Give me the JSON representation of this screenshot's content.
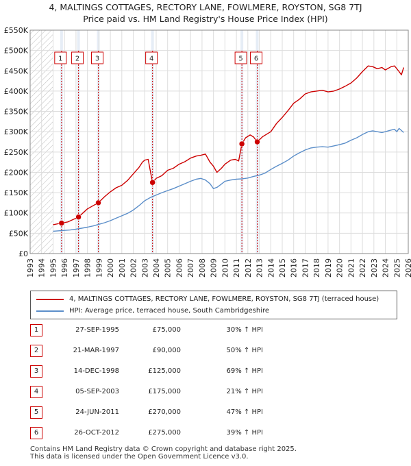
{
  "title": {
    "line1": "4, MALTINGS COTTAGES, RECTORY LANE, FOWLMERE, ROYSTON, SG8 7TJ",
    "line2": "Price paid vs. HM Land Registry's House Price Index (HPI)"
  },
  "chart_data": {
    "type": "line",
    "title": "4, MALTINGS COTTAGES, RECTORY LANE, FOWLMERE, ROYSTON, SG8 7TJ — Price paid vs. HM Land Registry's House Price Index (HPI)",
    "xlabel": "",
    "ylabel": "",
    "xlim": [
      1993,
      2026
    ],
    "ylim": [
      0,
      550000
    ],
    "x_ticks": [
      "1993",
      "1994",
      "1995",
      "1996",
      "1997",
      "1998",
      "1999",
      "2000",
      "2001",
      "2002",
      "2003",
      "2004",
      "2005",
      "2006",
      "2007",
      "2008",
      "2009",
      "2010",
      "2011",
      "2012",
      "2013",
      "2014",
      "2015",
      "2016",
      "2017",
      "2018",
      "2019",
      "2020",
      "2021",
      "2022",
      "2023",
      "2024",
      "2025",
      "2026"
    ],
    "y_ticks": [
      {
        "value": 0,
        "label": "£0"
      },
      {
        "value": 50000,
        "label": "£50K"
      },
      {
        "value": 100000,
        "label": "£100K"
      },
      {
        "value": 150000,
        "label": "£150K"
      },
      {
        "value": 200000,
        "label": "£200K"
      },
      {
        "value": 250000,
        "label": "£250K"
      },
      {
        "value": 300000,
        "label": "£300K"
      },
      {
        "value": 350000,
        "label": "£350K"
      },
      {
        "value": 400000,
        "label": "£400K"
      },
      {
        "value": 450000,
        "label": "£450K"
      },
      {
        "value": 500000,
        "label": "£500K"
      },
      {
        "value": 550000,
        "label": "£550K"
      }
    ],
    "grid": true,
    "data_start_year": 1995.0,
    "series": [
      {
        "name": "4, MALTINGS COTTAGES, RECTORY LANE, FOWLMERE, ROYSTON, SG8 7TJ (terraced house)",
        "color": "#cc0000",
        "x": [
          1995.0,
          1995.74,
          1996.3,
          1997.22,
          1998.0,
          1998.95,
          1999.5,
          2000.0,
          2000.5,
          2001.0,
          2001.5,
          2002.0,
          2002.5,
          2002.8,
          2003.0,
          2003.3,
          2003.68,
          2004.0,
          2004.5,
          2005.0,
          2005.5,
          2006.0,
          2006.5,
          2007.0,
          2007.5,
          2007.9,
          2008.3,
          2008.7,
          2009.0,
          2009.3,
          2009.7,
          2010.0,
          2010.5,
          2010.9,
          2011.2,
          2011.48,
          2011.8,
          2012.2,
          2012.5,
          2012.82,
          2013.3,
          2014.0,
          2014.5,
          2015.0,
          2015.5,
          2016.0,
          2016.5,
          2017.0,
          2017.5,
          2018.0,
          2018.5,
          2019.0,
          2019.5,
          2020.0,
          2020.5,
          2021.0,
          2021.5,
          2022.0,
          2022.5,
          2022.9,
          2023.3,
          2023.7,
          2024.0,
          2024.5,
          2024.8,
          2025.0,
          2025.2,
          2025.4,
          2025.6
        ],
        "y": [
          71000,
          75000,
          78000,
          90000,
          110000,
          125000,
          140000,
          152000,
          162000,
          168000,
          180000,
          196000,
          212000,
          225000,
          230000,
          232000,
          175000,
          185000,
          192000,
          205000,
          210000,
          220000,
          226000,
          235000,
          240000,
          242000,
          245000,
          225000,
          215000,
          200000,
          210000,
          220000,
          230000,
          232000,
          228000,
          270000,
          285000,
          292000,
          287000,
          275000,
          288000,
          300000,
          320000,
          335000,
          352000,
          370000,
          380000,
          393000,
          398000,
          400000,
          402000,
          398000,
          400000,
          405000,
          412000,
          420000,
          432000,
          448000,
          462000,
          460000,
          455000,
          458000,
          452000,
          460000,
          462000,
          455000,
          448000,
          440000,
          458000
        ]
      },
      {
        "name": "HPI: Average price, terraced house, South Cambridgeshire",
        "color": "#5b8ec9",
        "x": [
          1995.0,
          1995.5,
          1996.0,
          1996.5,
          1997.0,
          1997.5,
          1998.0,
          1998.5,
          1999.0,
          1999.5,
          2000.0,
          2000.5,
          2001.0,
          2001.5,
          2002.0,
          2002.5,
          2003.0,
          2003.5,
          2004.0,
          2004.5,
          2005.0,
          2005.5,
          2006.0,
          2006.5,
          2007.0,
          2007.5,
          2007.9,
          2008.3,
          2008.7,
          2009.0,
          2009.3,
          2009.7,
          2010.0,
          2010.5,
          2011.0,
          2011.5,
          2012.0,
          2012.5,
          2013.0,
          2013.5,
          2014.0,
          2014.5,
          2015.0,
          2015.5,
          2016.0,
          2016.5,
          2017.0,
          2017.5,
          2018.0,
          2018.5,
          2019.0,
          2019.5,
          2020.0,
          2020.5,
          2021.0,
          2021.5,
          2022.0,
          2022.5,
          2022.9,
          2023.3,
          2023.7,
          2024.0,
          2024.5,
          2024.8,
          2025.0,
          2025.2,
          2025.4,
          2025.6
        ],
        "y": [
          55000,
          56000,
          57000,
          58000,
          60000,
          62500,
          65000,
          68000,
          72000,
          76000,
          81000,
          87000,
          93000,
          99000,
          107000,
          118000,
          130000,
          138000,
          144000,
          150000,
          155000,
          160000,
          166000,
          172000,
          178000,
          183000,
          185000,
          181000,
          172000,
          160000,
          163000,
          171000,
          178000,
          181000,
          183000,
          184000,
          186000,
          190000,
          193000,
          198000,
          207000,
          215000,
          222000,
          230000,
          240000,
          248000,
          255000,
          260000,
          262000,
          263000,
          262000,
          265000,
          268000,
          272000,
          279000,
          285000,
          293000,
          300000,
          302000,
          300000,
          298000,
          300000,
          304000,
          306000,
          300000,
          308000,
          303000,
          298000
        ]
      }
    ],
    "sales": [
      {
        "num": "1",
        "year": 1995.74,
        "price": 75000,
        "date": "27-SEP-1995",
        "price_label": "£75,000",
        "hpi": "30% ↑ HPI"
      },
      {
        "num": "2",
        "year": 1997.22,
        "price": 90000,
        "date": "21-MAR-1997",
        "price_label": "£90,000",
        "hpi": "50% ↑ HPI"
      },
      {
        "num": "3",
        "year": 1998.95,
        "price": 125000,
        "date": "14-DEC-1998",
        "price_label": "£125,000",
        "hpi": "69% ↑ HPI"
      },
      {
        "num": "4",
        "year": 2003.68,
        "price": 175000,
        "date": "05-SEP-2003",
        "price_label": "£175,000",
        "hpi": "21% ↑ HPI"
      },
      {
        "num": "5",
        "year": 2011.48,
        "price": 270000,
        "date": "24-JUN-2011",
        "price_label": "£270,000",
        "hpi": "47% ↑ HPI"
      },
      {
        "num": "6",
        "year": 2012.82,
        "price": 275000,
        "date": "26-OCT-2012",
        "price_label": "£275,000",
        "hpi": "39% ↑ HPI"
      }
    ],
    "colors": {
      "grid": "#dddddd",
      "axis_bg": "#ffffff",
      "hatch": "#bbbbbb",
      "highlight": "#dce6f2"
    }
  },
  "legend": {
    "entry1": "4, MALTINGS COTTAGES, RECTORY LANE, FOWLMERE, ROYSTON, SG8 7TJ (terraced house)",
    "entry2": "HPI: Average price, terraced house, South Cambridgeshire"
  },
  "footer": {
    "line1": "Contains HM Land Registry data © Crown copyright and database right 2025.",
    "line2": "This data is licensed under the Open Government Licence v3.0."
  }
}
